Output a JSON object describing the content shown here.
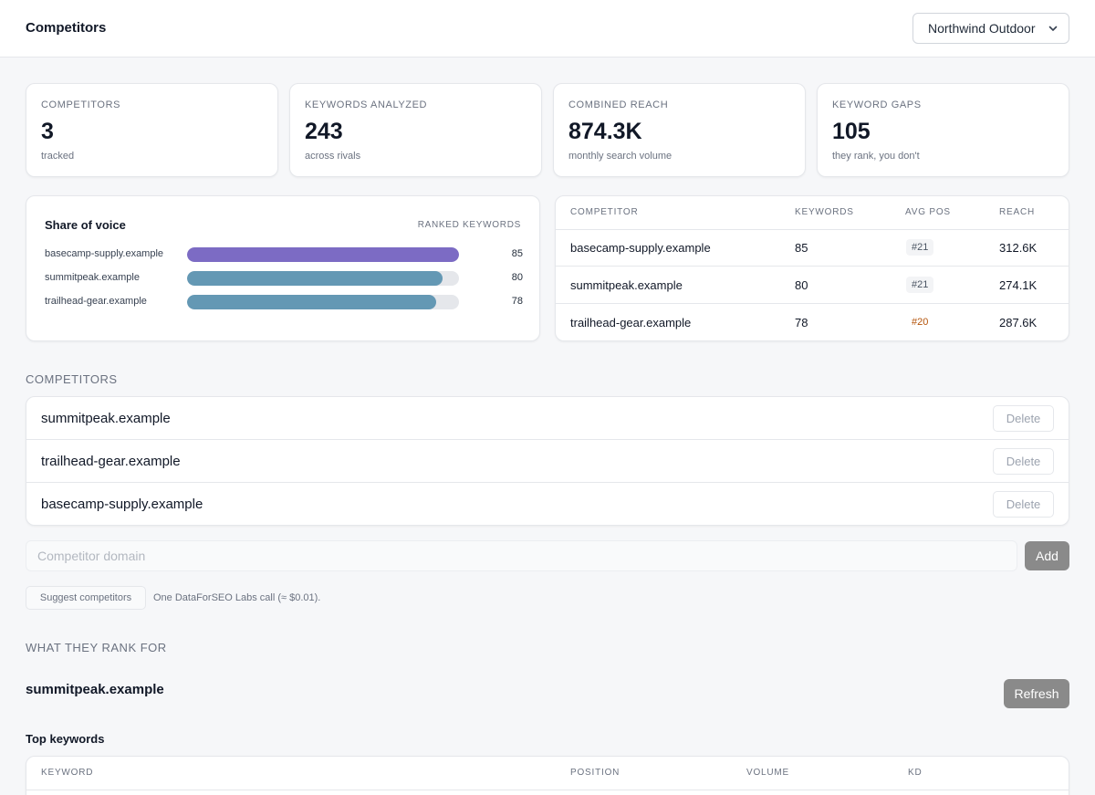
{
  "header": {
    "title": "Competitors",
    "project_selected": "Northwind Outdoor"
  },
  "stats": [
    {
      "label": "Competitors",
      "value": "3",
      "sub": "tracked"
    },
    {
      "label": "Keywords analyzed",
      "value": "243",
      "sub": "across rivals"
    },
    {
      "label": "Combined reach",
      "value": "874.3K",
      "sub": "monthly search volume"
    },
    {
      "label": "Keyword gaps",
      "value": "105",
      "sub": "they rank, you don't"
    }
  ],
  "share_of_voice": {
    "title": "Share of voice",
    "header": "Ranked keywords",
    "max": 85,
    "rows": [
      {
        "domain": "basecamp-supply.example",
        "count": 85,
        "color": "#7c6bc4"
      },
      {
        "domain": "summitpeak.example",
        "count": 80,
        "color": "#6498b4"
      },
      {
        "domain": "trailhead-gear.example",
        "count": 78,
        "color": "#6498b4"
      }
    ]
  },
  "competitor_table": {
    "headers": {
      "competitor": "Competitor",
      "keywords": "Keywords",
      "avg_pos": "Avg pos",
      "reach": "Reach"
    },
    "rows": [
      {
        "domain": "basecamp-supply.example",
        "keywords": "85",
        "avg_pos": "#21",
        "reach": "312.6K",
        "highlight": false
      },
      {
        "domain": "summitpeak.example",
        "keywords": "80",
        "avg_pos": "#21",
        "reach": "274.1K",
        "highlight": false
      },
      {
        "domain": "trailhead-gear.example",
        "keywords": "78",
        "avg_pos": "#20",
        "reach": "287.6K",
        "highlight": true
      }
    ]
  },
  "competitors_section": {
    "label": "Competitors",
    "items": [
      {
        "domain": "summitpeak.example",
        "delete_label": "Delete"
      },
      {
        "domain": "trailhead-gear.example",
        "delete_label": "Delete"
      },
      {
        "domain": "basecamp-supply.example",
        "delete_label": "Delete"
      }
    ],
    "input_placeholder": "Competitor domain",
    "input_value": "",
    "add_label": "Add",
    "suggest_label": "Suggest competitors",
    "suggest_note": "One DataForSEO Labs call (≈ $0.01)."
  },
  "rank_section": {
    "label": "What they rank for",
    "domain": "summitpeak.example",
    "refresh_label": "Refresh",
    "top_keywords_title": "Top keywords",
    "headers": {
      "keyword": "Keyword",
      "position": "Position",
      "volume": "Volume",
      "kd": "KD"
    }
  }
}
